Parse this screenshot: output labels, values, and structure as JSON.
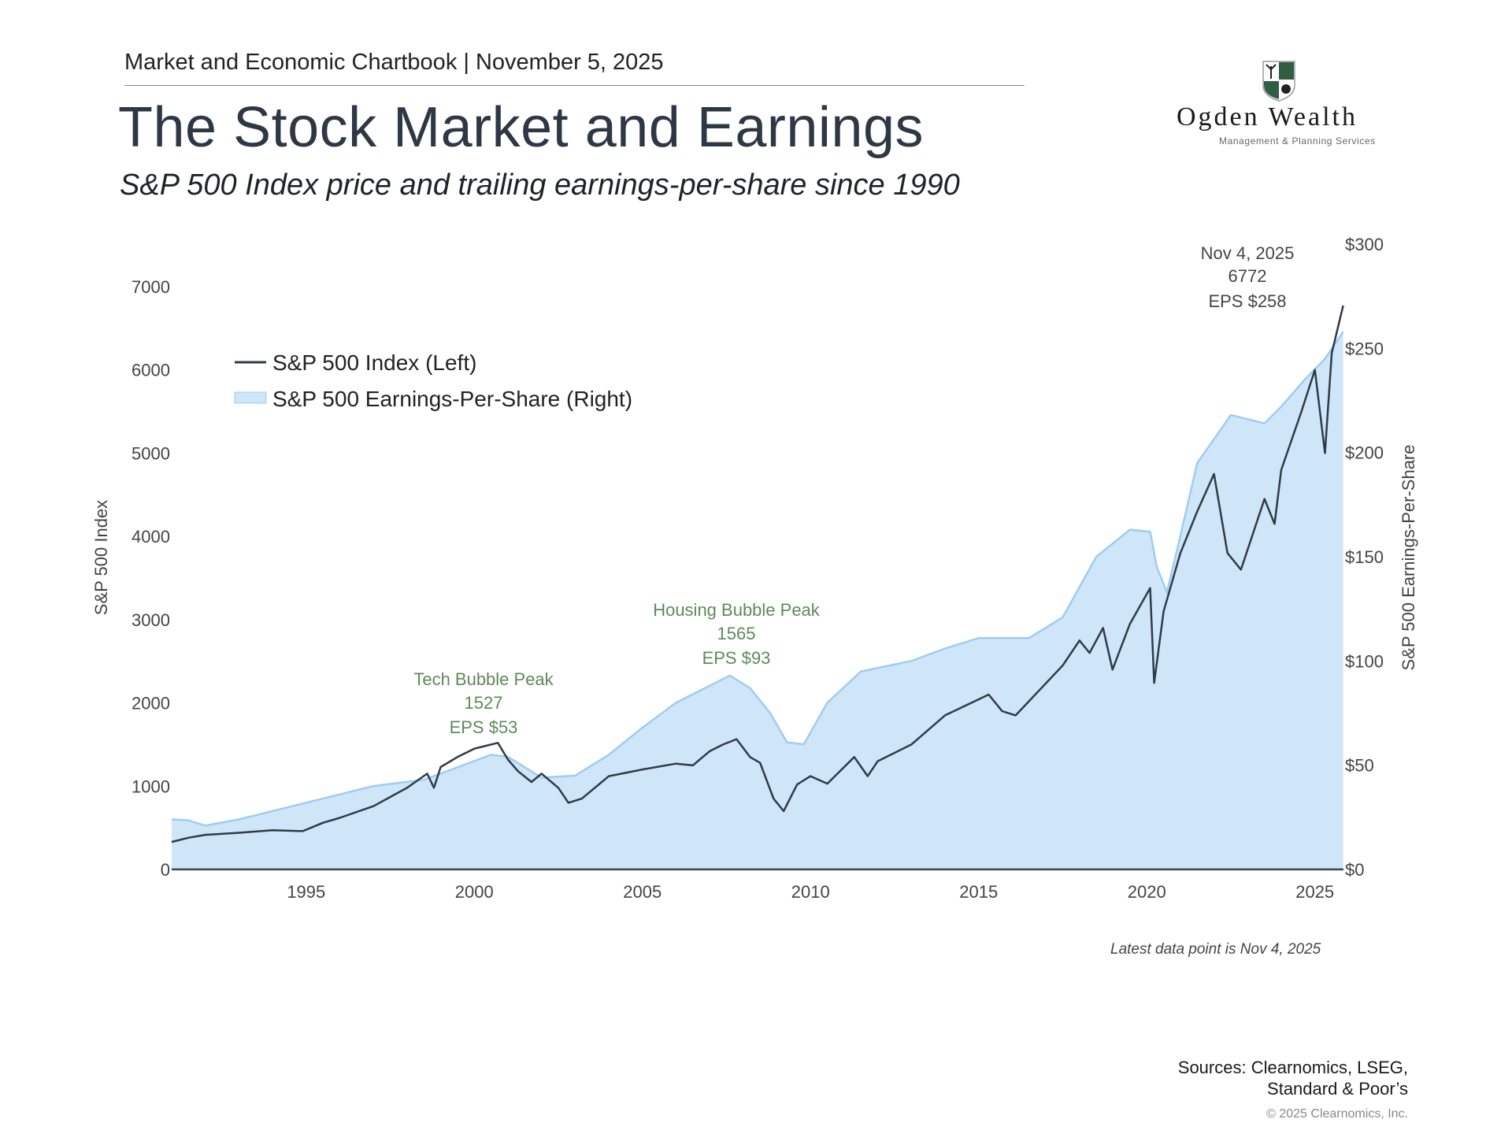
{
  "header": {
    "chartbook": "Market and Economic Chartbook | November 5, 2025",
    "title": "The Stock Market and Earnings",
    "subtitle": "S&P 500 Index price and trailing earnings-per-share since 1990"
  },
  "logo": {
    "name": "Ogden Wealth",
    "tagline": "Management & Planning Services"
  },
  "footer": {
    "latest": "Latest data point is Nov 4, 2025",
    "sources_line1": "Sources: Clearnomics, LSEG,",
    "sources_line2": "Standard & Poor’s",
    "copyright": "© 2025 Clearnomics, Inc."
  },
  "colors": {
    "index_line": "#2f3b48",
    "eps_fill": "#cfe6f9",
    "eps_line": "#9fccf2",
    "annotation": "#5e8a5a",
    "latest_annotation": "#444444"
  },
  "chart_data": {
    "type": "line",
    "title": "The Stock Market and Earnings",
    "xlabel": "",
    "ylabel_left": "S&P 500 Index",
    "ylabel_right": "S&P 500 Earnings-Per-Share",
    "xlim": [
      1991.0,
      2025.85
    ],
    "ylim_left": [
      0,
      7000
    ],
    "ylim_right": [
      0,
      300
    ],
    "x_ticks": [
      "1995",
      "2000",
      "2005",
      "2010",
      "2015",
      "2020",
      "2025"
    ],
    "x_tick_values": [
      1995,
      2000,
      2005,
      2010,
      2015,
      2020,
      2025
    ],
    "y_ticks_left": [
      "0",
      "1000",
      "2000",
      "3000",
      "4000",
      "5000",
      "6000",
      "7000"
    ],
    "y_tick_values_left": [
      0,
      1000,
      2000,
      3000,
      4000,
      5000,
      6000,
      7000
    ],
    "y_ticks_right": [
      "$0",
      "$50",
      "$100",
      "$150",
      "$200",
      "$250",
      "$300"
    ],
    "y_tick_values_right": [
      0,
      50,
      100,
      150,
      200,
      250,
      300
    ],
    "grid": false,
    "legend": {
      "placement": "top-left",
      "entries": [
        "S&P 500 Index (Left)",
        "S&P 500 Earnings-Per-Share (Right)"
      ]
    },
    "series": [
      {
        "name": "S&P 500 Index (Left)",
        "axis": "left",
        "type": "line",
        "x": [
          1991.0,
          1991.5,
          1992.0,
          1993.0,
          1994.0,
          1994.9,
          1995.5,
          1996.0,
          1997.0,
          1998.0,
          1998.6,
          1998.8,
          1999.0,
          1999.5,
          2000.0,
          2000.3,
          2000.7,
          2001.0,
          2001.3,
          2001.7,
          2002.0,
          2002.5,
          2002.8,
          2003.2,
          2004.0,
          2005.0,
          2006.0,
          2006.5,
          2007.0,
          2007.4,
          2007.8,
          2008.2,
          2008.5,
          2008.9,
          2009.2,
          2009.6,
          2010.0,
          2010.5,
          2011.3,
          2011.7,
          2012.0,
          2013.0,
          2014.0,
          2015.3,
          2015.7,
          2016.1,
          2016.8,
          2017.5,
          2018.0,
          2018.3,
          2018.7,
          2018.98,
          2019.5,
          2020.1,
          2020.22,
          2020.5,
          2021.0,
          2021.5,
          2022.0,
          2022.4,
          2022.8,
          2023.5,
          2023.8,
          2024.0,
          2024.6,
          2025.0,
          2025.3,
          2025.5,
          2025.84
        ],
        "y": [
          330,
          380,
          415,
          440,
          470,
          460,
          560,
          620,
          760,
          980,
          1150,
          980,
          1230,
          1350,
          1450,
          1480,
          1520,
          1320,
          1180,
          1050,
          1150,
          980,
          800,
          850,
          1120,
          1200,
          1270,
          1250,
          1420,
          1500,
          1565,
          1350,
          1280,
          850,
          700,
          1020,
          1120,
          1030,
          1350,
          1120,
          1300,
          1500,
          1850,
          2100,
          1900,
          1850,
          2150,
          2450,
          2750,
          2600,
          2900,
          2400,
          2950,
          3380,
          2240,
          3100,
          3800,
          4300,
          4750,
          3800,
          3600,
          4450,
          4150,
          4800,
          5500,
          6000,
          5000,
          6200,
          6772
        ]
      },
      {
        "name": "S&P 500 Earnings-Per-Share (Right)",
        "axis": "right",
        "type": "area",
        "x": [
          1991.0,
          1991.5,
          1992.0,
          1993.0,
          1995.0,
          1997.0,
          1998.5,
          1999.0,
          2000.5,
          2001.0,
          2002.0,
          2003.0,
          2004.0,
          2005.0,
          2006.0,
          2007.6,
          2008.2,
          2008.8,
          2009.3,
          2009.8,
          2010.5,
          2011.5,
          2013.0,
          2014.0,
          2015.0,
          2016.5,
          2017.5,
          2018.5,
          2019.5,
          2020.1,
          2020.3,
          2020.6,
          2021.0,
          2021.5,
          2022.5,
          2023.5,
          2024.0,
          2024.7,
          2025.3,
          2025.84
        ],
        "y": [
          24,
          23.5,
          21,
          24,
          32,
          40,
          43,
          46,
          55,
          54,
          44,
          45,
          55,
          68,
          80,
          93,
          87,
          75,
          61,
          60,
          80,
          95,
          100,
          106,
          111,
          111,
          121,
          150,
          163,
          162,
          145,
          133,
          160,
          195,
          218,
          214,
          222,
          235,
          245,
          258
        ]
      }
    ],
    "annotations": [
      {
        "label": "Tech Bubble Peak",
        "value": "1527",
        "eps": "EPS $53",
        "x": 2000.2
      },
      {
        "label": "Housing Bubble Peak",
        "value": "1565",
        "eps": "EPS $93",
        "x": 2007.8
      },
      {
        "label": "Nov 4, 2025",
        "value": "6772",
        "eps": "EPS $258",
        "x": 2024.0
      }
    ]
  }
}
